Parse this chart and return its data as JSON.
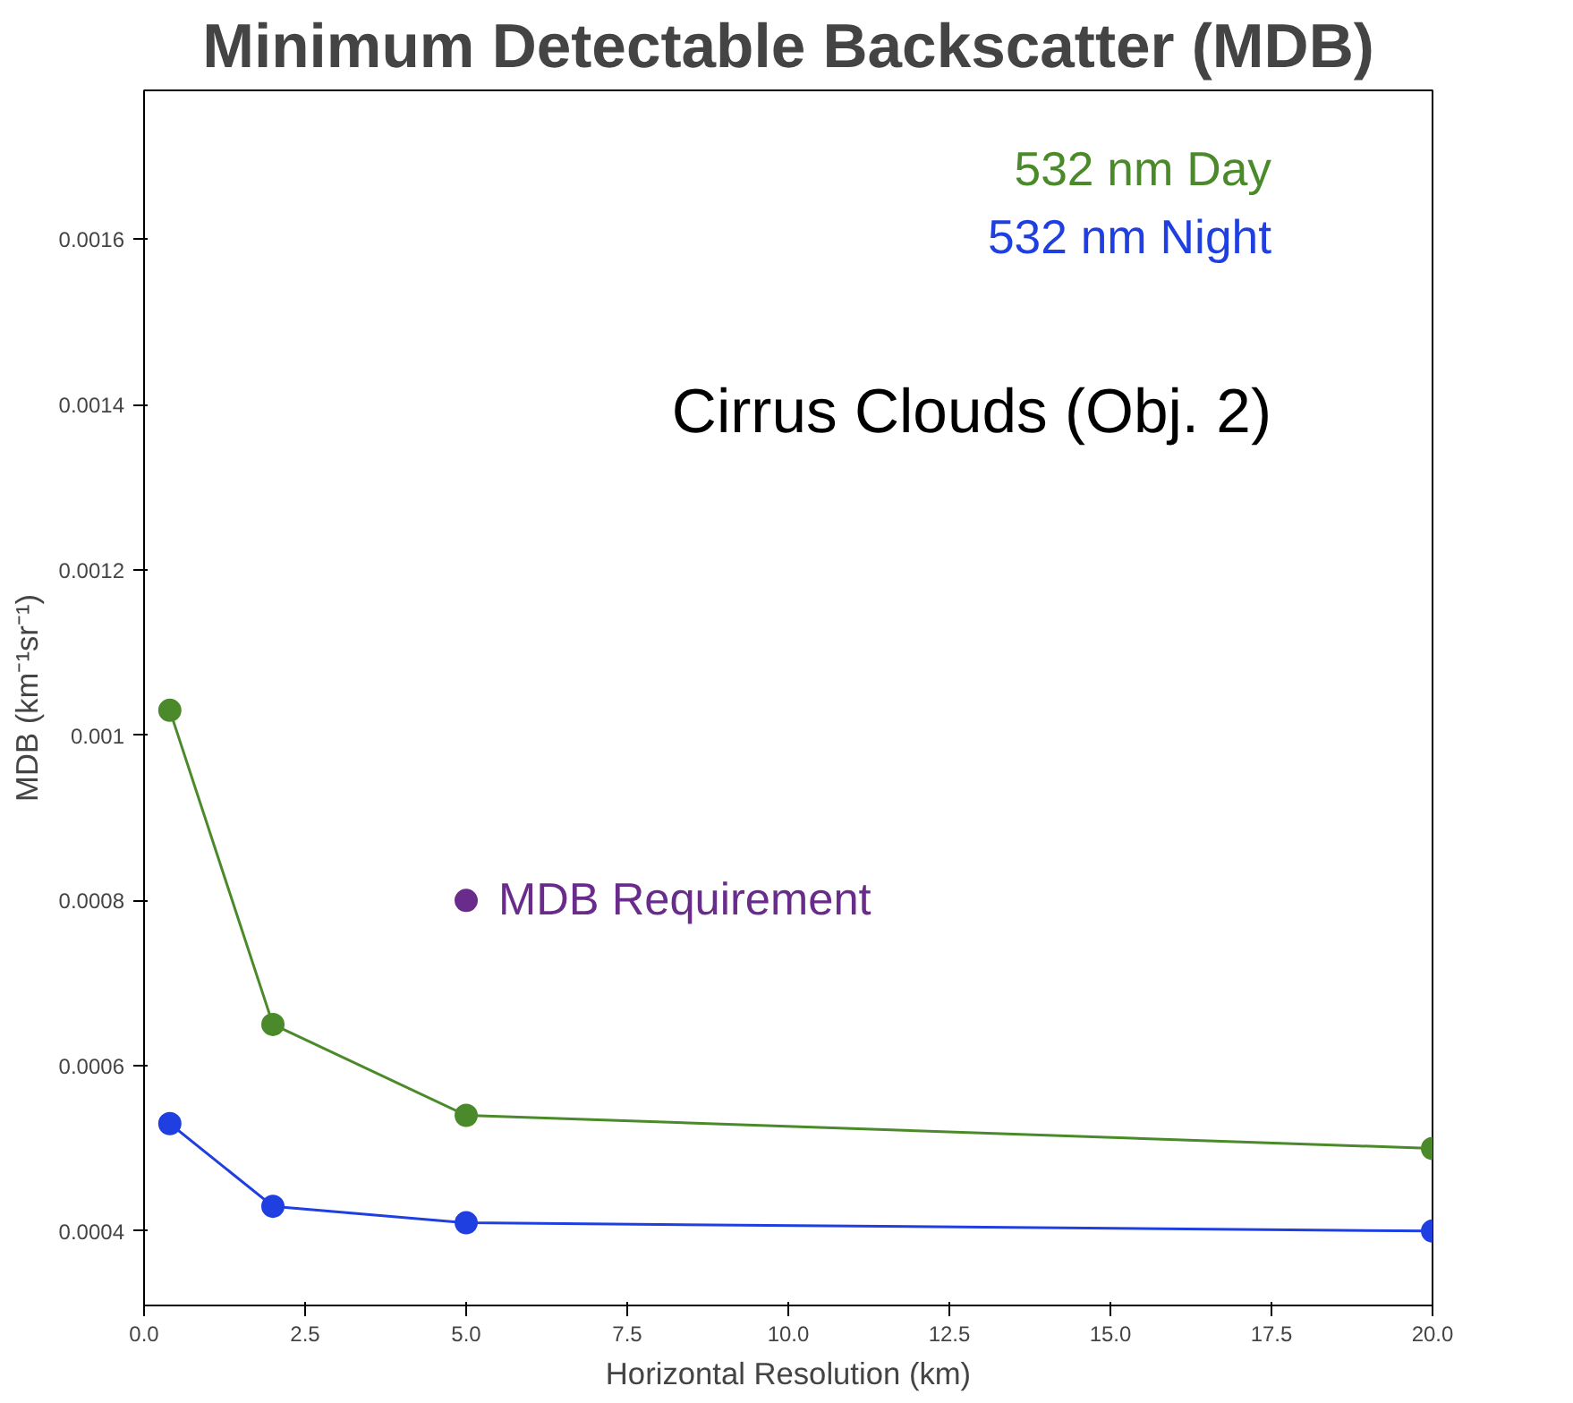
{
  "chart_data": {
    "type": "line",
    "title": "Minimum Detectable Backscatter (MDB)",
    "xlabel": "Horizontal Resolution (km)",
    "ylabel": "MDB (km⁻¹sr⁻¹)",
    "xlim": [
      0,
      20
    ],
    "xticks": [
      {
        "value": 0,
        "label": "0.0"
      },
      {
        "value": 2.5,
        "label": "2.5"
      },
      {
        "value": 5,
        "label": "5.0"
      },
      {
        "value": 7.5,
        "label": "7.5"
      },
      {
        "value": 10,
        "label": "10.0"
      },
      {
        "value": 12.5,
        "label": "12.5"
      },
      {
        "value": 15,
        "label": "15.0"
      },
      {
        "value": 17.5,
        "label": "17.5"
      },
      {
        "value": 20,
        "label": "20.0"
      }
    ],
    "ylim": [
      0.00031,
      0.00178
    ],
    "yticks": [
      0.0004,
      0.0006,
      0.0008,
      0.001,
      0.0012,
      0.0014,
      0.0016
    ],
    "grid": false,
    "legend": "top right",
    "marker": "circle",
    "line_style": "solid",
    "series": [
      {
        "name": "532 nm Day",
        "color": "#4a8a2a",
        "x": [
          0.4,
          2,
          5,
          20
        ],
        "values": [
          0.00103,
          0.00065,
          0.00054,
          0.0005
        ]
      },
      {
        "name": "532 nm Night",
        "color": "#1f3fe0",
        "x": [
          0.4,
          2,
          5,
          20
        ],
        "values": [
          0.00053,
          0.00043,
          0.00041,
          0.0004
        ]
      },
      {
        "name": "MDB Requirement",
        "type": "scatter",
        "color": "#6a2c8a",
        "x": [
          5
        ],
        "values": [
          0.0008
        ]
      }
    ],
    "annotations": [
      "Cirrus Clouds (Obj. 2)"
    ]
  }
}
